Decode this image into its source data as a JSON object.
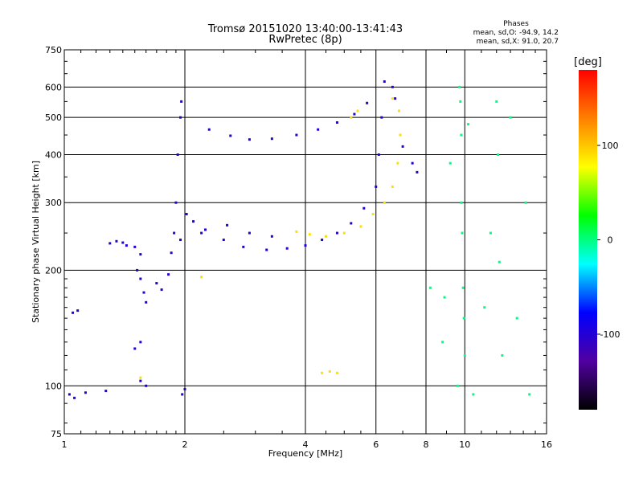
{
  "chart_data": {
    "type": "scatter",
    "title": "Tromsø 20151020 13:40:00-13:41:43",
    "subtitle": "RwPretec (8p)",
    "xlabel": "Frequency [MHz]",
    "ylabel": "Stationary phase Virtual Height [km]",
    "x_scale": "log",
    "y_scale": "log",
    "xlim": [
      1,
      16
    ],
    "ylim": [
      75,
      750
    ],
    "x_ticks": [
      1,
      2,
      4,
      6,
      8,
      10,
      16
    ],
    "y_ticks": [
      75,
      100,
      200,
      300,
      400,
      500,
      600,
      750
    ],
    "grid": true,
    "stats": {
      "heading": "Phases",
      "line_o": "mean, sd,O: -94.9, 14.2",
      "line_x": "mean, sd,X:  91.0, 20.7"
    },
    "colorbar": {
      "label": "[deg]",
      "range": [
        -180,
        180
      ],
      "ticks": [
        100,
        0,
        -100
      ],
      "colors": [
        "#ff0000",
        "#ff8000",
        "#ffff00",
        "#00ff00",
        "#00ffff",
        "#0000ff",
        "#5000a0",
        "#000000"
      ]
    },
    "series": [
      {
        "mode": "O",
        "phase": -100,
        "points": [
          [
            1.05,
            155
          ],
          [
            1.08,
            157
          ],
          [
            1.03,
            95
          ],
          [
            1.06,
            93
          ],
          [
            1.13,
            96
          ],
          [
            1.27,
            97
          ],
          [
            1.3,
            235
          ],
          [
            1.35,
            238
          ],
          [
            1.4,
            236
          ],
          [
            1.43,
            232
          ],
          [
            1.5,
            230
          ],
          [
            1.55,
            220
          ],
          [
            1.52,
            200
          ],
          [
            1.55,
            190
          ],
          [
            1.58,
            175
          ],
          [
            1.6,
            165
          ],
          [
            1.55,
            130
          ],
          [
            1.5,
            125
          ],
          [
            1.55,
            103
          ],
          [
            1.6,
            100
          ],
          [
            1.7,
            185
          ],
          [
            1.75,
            178
          ],
          [
            1.82,
            195
          ],
          [
            1.85,
            222
          ],
          [
            1.88,
            250
          ],
          [
            1.9,
            300
          ],
          [
            1.92,
            400
          ],
          [
            1.95,
            500
          ],
          [
            1.96,
            550
          ],
          [
            1.97,
            95
          ],
          [
            2.0,
            98
          ],
          [
            2.02,
            280
          ],
          [
            2.1,
            268
          ],
          [
            2.25,
            255
          ],
          [
            2.5,
            240
          ],
          [
            2.8,
            230
          ],
          [
            3.2,
            226
          ],
          [
            3.6,
            228
          ],
          [
            4.0,
            232
          ],
          [
            4.4,
            240
          ],
          [
            4.8,
            250
          ],
          [
            5.2,
            265
          ],
          [
            5.6,
            290
          ],
          [
            6.0,
            330
          ],
          [
            6.1,
            400
          ],
          [
            6.2,
            500
          ],
          [
            6.3,
            620
          ],
          [
            2.3,
            465
          ],
          [
            2.6,
            448
          ],
          [
            2.9,
            438
          ],
          [
            3.3,
            440
          ],
          [
            3.8,
            450
          ],
          [
            4.3,
            465
          ],
          [
            4.8,
            485
          ],
          [
            5.3,
            510
          ],
          [
            5.7,
            545
          ],
          [
            6.6,
            600
          ],
          [
            6.7,
            560
          ],
          [
            7.0,
            420
          ],
          [
            7.4,
            380
          ],
          [
            7.6,
            360
          ],
          [
            1.95,
            240
          ],
          [
            2.2,
            250
          ],
          [
            2.55,
            262
          ],
          [
            2.9,
            250
          ],
          [
            3.3,
            245
          ]
        ]
      },
      {
        "mode": "X",
        "phase": 90,
        "points": [
          [
            3.8,
            252
          ],
          [
            4.1,
            248
          ],
          [
            4.5,
            245
          ],
          [
            5.0,
            250
          ],
          [
            5.5,
            260
          ],
          [
            5.9,
            280
          ],
          [
            6.3,
            300
          ],
          [
            6.6,
            330
          ],
          [
            6.8,
            380
          ],
          [
            6.9,
            450
          ],
          [
            6.85,
            520
          ],
          [
            6.6,
            560
          ],
          [
            5.2,
            500
          ],
          [
            5.4,
            520
          ],
          [
            4.4,
            108
          ],
          [
            4.6,
            109
          ],
          [
            4.8,
            108
          ],
          [
            2.2,
            192
          ],
          [
            1.55,
            105
          ]
        ]
      },
      {
        "mode": "scattered",
        "phase": 0,
        "points": [
          [
            9.7,
            600
          ],
          [
            9.75,
            550
          ],
          [
            9.8,
            450
          ],
          [
            9.8,
            300
          ],
          [
            9.85,
            250
          ],
          [
            9.9,
            180
          ],
          [
            9.95,
            150
          ],
          [
            10.0,
            120
          ],
          [
            8.9,
            170
          ],
          [
            8.8,
            130
          ],
          [
            10.5,
            95
          ],
          [
            11.2,
            160
          ],
          [
            11.6,
            250
          ],
          [
            12.0,
            550
          ],
          [
            12.2,
            210
          ],
          [
            12.4,
            120
          ],
          [
            13.0,
            500
          ],
          [
            13.5,
            150
          ],
          [
            14.2,
            300
          ],
          [
            14.5,
            95
          ],
          [
            9.2,
            380
          ],
          [
            10.2,
            480
          ],
          [
            8.2,
            180
          ],
          [
            9.6,
            100
          ],
          [
            12.1,
            400
          ]
        ]
      }
    ]
  }
}
